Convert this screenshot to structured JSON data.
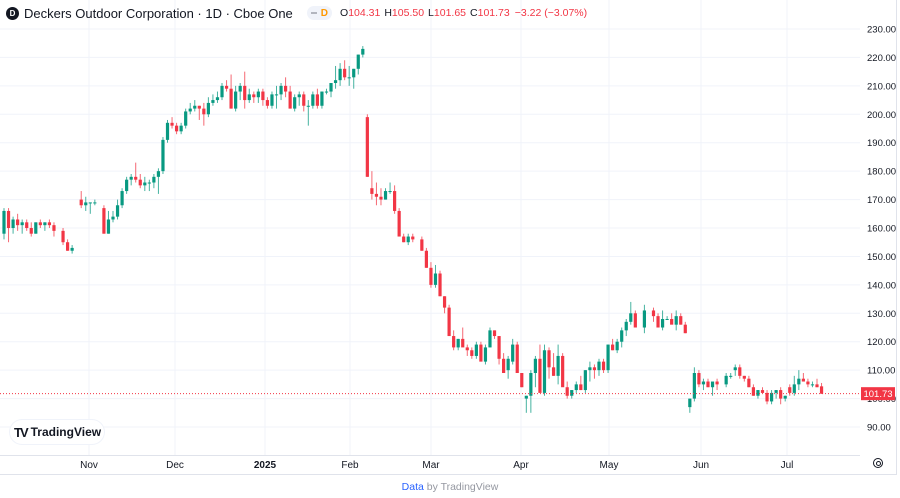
{
  "header": {
    "symbol_logo": "D",
    "title": "Deckers Outdoor Corporation · 1D · Cboe One",
    "badge_label": "D",
    "ohlc": {
      "o_label": "O",
      "o": "104.31",
      "h_label": "H",
      "h": "105.50",
      "l_label": "L",
      "l": "101.65",
      "c_label": "C",
      "c": "101.73"
    },
    "change": "−3.22 (−3.07%)"
  },
  "colors": {
    "up": "#089981",
    "down": "#f23645",
    "grid": "#f0f3fa",
    "axis_text": "#131722",
    "last_price_bg": "#f23645"
  },
  "watermark": {
    "mark": "TV",
    "text": "TradingView"
  },
  "footer": {
    "link": "Data",
    "text": " by TradingView"
  },
  "last_price_label": "101.73",
  "chart_data": {
    "type": "candlestick",
    "title": "Deckers Outdoor Corporation · 1D · Cboe One",
    "xlabel": "",
    "ylabel": "",
    "ylim": [
      86,
      233
    ],
    "grid": true,
    "y_ticks": [
      "230.00",
      "220.00",
      "210.00",
      "200.00",
      "190.00",
      "180.00",
      "170.00",
      "160.00",
      "150.00",
      "140.00",
      "130.00",
      "120.00",
      "110.00",
      "100.00",
      "90.00"
    ],
    "x_ticks": [
      {
        "label": "Nov",
        "x": 89
      },
      {
        "label": "Dec",
        "x": 175
      },
      {
        "label": "2025",
        "x": 265
      },
      {
        "label": "Feb",
        "x": 350
      },
      {
        "label": "Mar",
        "x": 431
      },
      {
        "label": "Apr",
        "x": 521
      },
      {
        "label": "May",
        "x": 609
      },
      {
        "label": "Jun",
        "x": 701
      },
      {
        "label": "Jul",
        "x": 787
      }
    ],
    "last_price": 101.73,
    "ohlc": [
      [
        158,
        167,
        156,
        166
      ],
      [
        166,
        167,
        155,
        160
      ],
      [
        160,
        164,
        158,
        163
      ],
      [
        163,
        165,
        159,
        161
      ],
      [
        161,
        163,
        158,
        162
      ],
      [
        162,
        163,
        159,
        160
      ],
      [
        160,
        162,
        157,
        158
      ],
      [
        158,
        162,
        158,
        162
      ],
      [
        162,
        163,
        160,
        161
      ],
      [
        161,
        162,
        159,
        162
      ],
      [
        162,
        163,
        160,
        161
      ],
      [
        161,
        162,
        157,
        159
      ],
      [
        159,
        160,
        154,
        155
      ],
      [
        155,
        156,
        152,
        152
      ],
      [
        152,
        154,
        151,
        153
      ],
      [
        170,
        173,
        167,
        168
      ],
      [
        168,
        171,
        166,
        169
      ],
      [
        169,
        169,
        165,
        169
      ],
      [
        169,
        170,
        168,
        169
      ],
      [
        167,
        168,
        158,
        158
      ],
      [
        158,
        166,
        158,
        163
      ],
      [
        163,
        166,
        162,
        164
      ],
      [
        164,
        170,
        163,
        168
      ],
      [
        168,
        174,
        167,
        173
      ],
      [
        173,
        178,
        172,
        177
      ],
      [
        177,
        179,
        175,
        178
      ],
      [
        178,
        183,
        176,
        177
      ],
      [
        177,
        179,
        174,
        175
      ],
      [
        175,
        178,
        173,
        176
      ],
      [
        176,
        177,
        173,
        176
      ],
      [
        176,
        179,
        174,
        178
      ],
      [
        178,
        181,
        172,
        180
      ],
      [
        180,
        192,
        179,
        191
      ],
      [
        191,
        198,
        190,
        197
      ],
      [
        197,
        199,
        195,
        196
      ],
      [
        196,
        197,
        193,
        194
      ],
      [
        194,
        197,
        193,
        196
      ],
      [
        196,
        202,
        195,
        201
      ],
      [
        201,
        204,
        200,
        202
      ],
      [
        202,
        205,
        201,
        203
      ],
      [
        203,
        203,
        198,
        202
      ],
      [
        202,
        204,
        196,
        200
      ],
      [
        200,
        206,
        199,
        204
      ],
      [
        204,
        207,
        203,
        205
      ],
      [
        205,
        208,
        204,
        206
      ],
      [
        206,
        211,
        205,
        210
      ],
      [
        210,
        212,
        208,
        209
      ],
      [
        209,
        214,
        202,
        202
      ],
      [
        202,
        210,
        201,
        208
      ],
      [
        208,
        211,
        205,
        210
      ],
      [
        210,
        215,
        202,
        205
      ],
      [
        205,
        209,
        204,
        207
      ],
      [
        207,
        208,
        204,
        206
      ],
      [
        206,
        209,
        204,
        208
      ],
      [
        208,
        209,
        203,
        205
      ],
      [
        205,
        206,
        202,
        203
      ],
      [
        203,
        208,
        202,
        207
      ],
      [
        207,
        210,
        202,
        207
      ],
      [
        207,
        211,
        205,
        210
      ],
      [
        210,
        213,
        206,
        208
      ],
      [
        208,
        210,
        202,
        202
      ],
      [
        202,
        207,
        201,
        206
      ],
      [
        206,
        208,
        203,
        207
      ],
      [
        207,
        208,
        201,
        203
      ],
      [
        203,
        205,
        196,
        203
      ],
      [
        203,
        208,
        202,
        207
      ],
      [
        207,
        209,
        202,
        203
      ],
      [
        203,
        208,
        202,
        208
      ],
      [
        208,
        209,
        207,
        208
      ],
      [
        208,
        210,
        206,
        211
      ],
      [
        211,
        217,
        209,
        212
      ],
      [
        212,
        218,
        210,
        216
      ],
      [
        216,
        219,
        212,
        213
      ],
      [
        213,
        217,
        210,
        213
      ],
      [
        213,
        216,
        209,
        216
      ],
      [
        216,
        221,
        214,
        221
      ],
      [
        221,
        224,
        220,
        223
      ],
      [
        199,
        200,
        178,
        178
      ],
      [
        174,
        180,
        170,
        172
      ],
      [
        172,
        176,
        168,
        171
      ],
      [
        171,
        174,
        168,
        170
      ],
      [
        170,
        174,
        170,
        173
      ],
      [
        173,
        176,
        172,
        173
      ],
      [
        173,
        175,
        165,
        166
      ],
      [
        166,
        167,
        157,
        157
      ],
      [
        157,
        158,
        155,
        155
      ],
      [
        155,
        158,
        154,
        157
      ],
      [
        157,
        158,
        155,
        156
      ],
      [
        156,
        157,
        152,
        152
      ],
      [
        152,
        153,
        146,
        146
      ],
      [
        146,
        148,
        139,
        140
      ],
      [
        140,
        147,
        139,
        144
      ],
      [
        144,
        145,
        136,
        136
      ],
      [
        136,
        136,
        130,
        132
      ],
      [
        132,
        133,
        122,
        122
      ],
      [
        122,
        124,
        117,
        118
      ],
      [
        118,
        121,
        117,
        121
      ],
      [
        121,
        125,
        120,
        118
      ],
      [
        118,
        119,
        115,
        117
      ],
      [
        117,
        118,
        114,
        115
      ],
      [
        115,
        120,
        114,
        119
      ],
      [
        119,
        120,
        115,
        113
      ],
      [
        113,
        119,
        112,
        118
      ],
      [
        118,
        125,
        118,
        124
      ],
      [
        124,
        124,
        121,
        122
      ],
      [
        122,
        122,
        112,
        114
      ],
      [
        114,
        116,
        110,
        109
      ],
      [
        110,
        115,
        107,
        114
      ],
      [
        113,
        121,
        112,
        119
      ],
      [
        119,
        120,
        109,
        109
      ],
      [
        109,
        109,
        104,
        104
      ],
      [
        100,
        101,
        95,
        101
      ],
      [
        101,
        110,
        95,
        109
      ],
      [
        109,
        115,
        104,
        114
      ],
      [
        114,
        119,
        103,
        102
      ],
      [
        102,
        119,
        101,
        117
      ],
      [
        117,
        118,
        107,
        111
      ],
      [
        111,
        116,
        108,
        108
      ],
      [
        108,
        119,
        105,
        115
      ],
      [
        115,
        116,
        107,
        104
      ],
      [
        104,
        106,
        100,
        101
      ],
      [
        101,
        103,
        100,
        103
      ],
      [
        103,
        106,
        102,
        105
      ],
      [
        105,
        108,
        103,
        103
      ],
      [
        103,
        110,
        102,
        110
      ],
      [
        110,
        113,
        106,
        111
      ],
      [
        111,
        112,
        107,
        110
      ],
      [
        110,
        114,
        108,
        113
      ],
      [
        113,
        114,
        109,
        110
      ],
      [
        110,
        119,
        109,
        119
      ],
      [
        119,
        121,
        117,
        117
      ],
      [
        117,
        121,
        116,
        120
      ],
      [
        120,
        125,
        118,
        124
      ],
      [
        124,
        128,
        122,
        127
      ],
      [
        127,
        134,
        126,
        130
      ],
      [
        130,
        131,
        126,
        125
      ],
      [
        125,
        133,
        123,
        131
      ],
      [
        131,
        132,
        127,
        129
      ],
      [
        129,
        130,
        125,
        125
      ],
      [
        125,
        131,
        124,
        128
      ],
      [
        128,
        129,
        128,
        128
      ],
      [
        128,
        130,
        127,
        126
      ],
      [
        126,
        131,
        124,
        129
      ],
      [
        129,
        130,
        126,
        126
      ],
      [
        126,
        127,
        123,
        123
      ],
      [
        97,
        99,
        95,
        100
      ],
      [
        100,
        111,
        99,
        109
      ],
      [
        109,
        110,
        104,
        105
      ],
      [
        105,
        107,
        103,
        106
      ],
      [
        106,
        107,
        104,
        104
      ],
      [
        104,
        105,
        101,
        106
      ],
      [
        106,
        107,
        103,
        105
      ],
      [
        105,
        109,
        104,
        108
      ],
      [
        108,
        109,
        107,
        108
      ],
      [
        110,
        112,
        108,
        111
      ],
      [
        111,
        112,
        107,
        108
      ],
      [
        108,
        108,
        106,
        107
      ],
      [
        107,
        108,
        104,
        104
      ],
      [
        104,
        105,
        101,
        101
      ],
      [
        101,
        103,
        100,
        103
      ],
      [
        103,
        104,
        102,
        102
      ],
      [
        102,
        103,
        98,
        99
      ],
      [
        99,
        103,
        98,
        102
      ],
      [
        102,
        103,
        100,
        103
      ],
      [
        103,
        104,
        98,
        100
      ],
      [
        100,
        101,
        99,
        101
      ],
      [
        104,
        105,
        101,
        102
      ],
      [
        102,
        108,
        101,
        105
      ],
      [
        105,
        110,
        103,
        107
      ],
      [
        107,
        109,
        106,
        106
      ],
      [
        106,
        107,
        104,
        105
      ],
      [
        105,
        106,
        104,
        105
      ],
      [
        105,
        107,
        104,
        104
      ],
      [
        104.31,
        105.5,
        101.65,
        101.73
      ]
    ]
  }
}
